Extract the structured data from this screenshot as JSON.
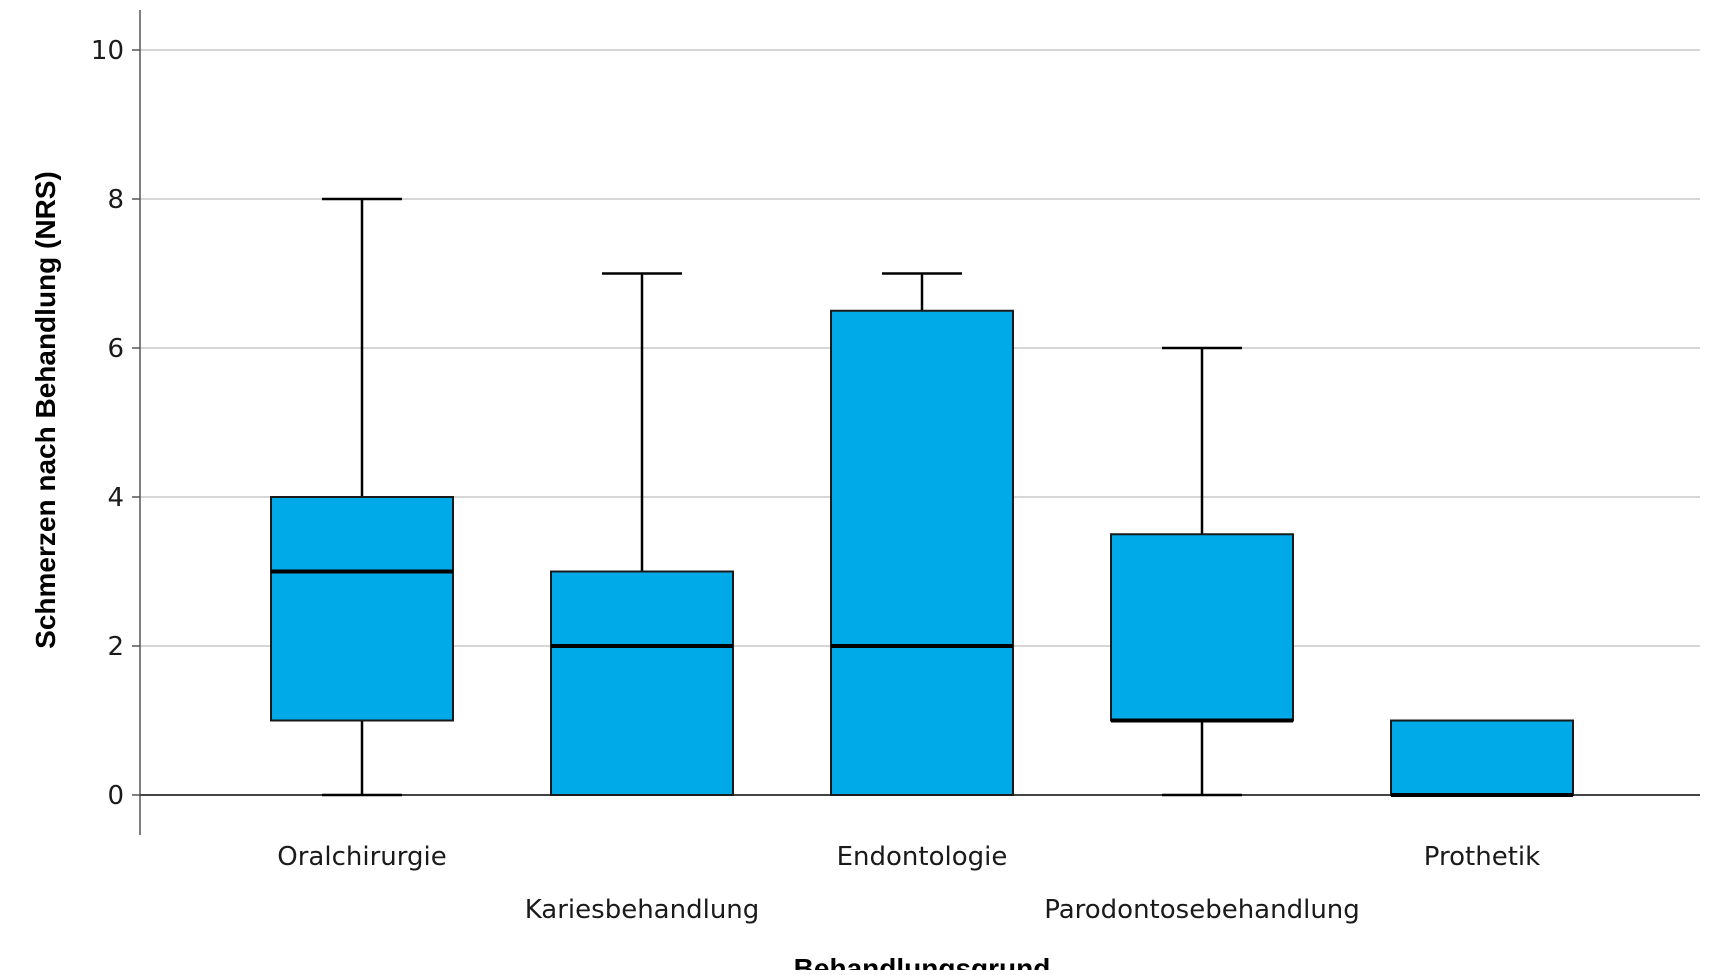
{
  "chart_data": {
    "type": "boxplot",
    "xlabel": "Behandlungsgrund",
    "ylabel": "Schmerzen nach Behandlung (NRS)",
    "ylim": [
      0,
      10
    ],
    "yticks": [
      0,
      2,
      4,
      6,
      8,
      10
    ],
    "grid": true,
    "box_color": "#00a9e8",
    "categories": [
      "Oralchirurgie",
      "Kariesbehandlung",
      "Endontologie",
      "Parodontosebehandlung",
      "Prothetik"
    ],
    "boxes": [
      {
        "category": "Oralchirurgie",
        "min": 0,
        "q1": 1,
        "median": 3,
        "q3": 4,
        "max": 8
      },
      {
        "category": "Kariesbehandlung",
        "min": 0,
        "q1": 0,
        "median": 2,
        "q3": 3,
        "max": 7
      },
      {
        "category": "Endontologie",
        "min": 0,
        "q1": 0,
        "median": 2,
        "q3": 6.5,
        "max": 7
      },
      {
        "category": "Parodontosebehandlung",
        "min": 0,
        "q1": 1,
        "median": 1,
        "q3": 3.5,
        "max": 6
      },
      {
        "category": "Prothetik",
        "min": 0,
        "q1": 0,
        "median": 0,
        "q3": 1,
        "max": 1
      }
    ]
  }
}
